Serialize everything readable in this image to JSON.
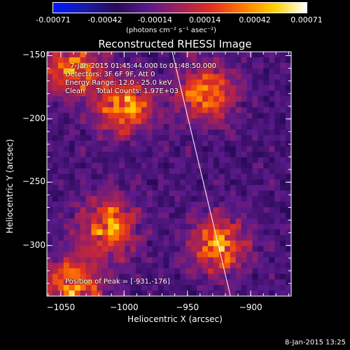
{
  "colorbar": {
    "ticks": [
      "-0.00071",
      "-0.00042",
      "-0.00014",
      "0.00014",
      "0.00042",
      "0.00071"
    ],
    "tick_values": [
      -0.00071,
      -0.00042,
      -0.00014,
      0.00014,
      0.00042,
      0.00071
    ],
    "units": "(photons cm⁻² s⁻¹ asec⁻²)",
    "colors": [
      "#0018ff",
      "#1a1aa8",
      "#2a0a58",
      "#5a1a8a",
      "#a0205a",
      "#e03020",
      "#ff7a00",
      "#ffd000",
      "#ffffff"
    ]
  },
  "chart_data": {
    "type": "heatmap",
    "title": "Reconstructed RHESSI Image",
    "xlabel": "Heliocentric X (arcsec)",
    "ylabel": "Heliocentric Y (arcsec)",
    "x_ticks": [
      "−1050",
      "−1000",
      "−950",
      "−900"
    ],
    "x_tick_values": [
      -1050,
      -1000,
      -950,
      -900
    ],
    "y_ticks": [
      "−150",
      "−200",
      "−250",
      "−300"
    ],
    "y_tick_values": [
      -150,
      -200,
      -250,
      -300
    ],
    "xlim": [
      -1061,
      -868
    ],
    "ylim": [
      -340,
      -147
    ],
    "limb_line": {
      "x": [
        -962,
        -916
      ],
      "y": [
        -147,
        -340
      ]
    },
    "peak": {
      "x": -931,
      "y": -176
    },
    "bright_regions": [
      {
        "x": -1000,
        "y": -190
      },
      {
        "x": -935,
        "y": -180
      },
      {
        "x": -1040,
        "y": -160
      },
      {
        "x": -1012,
        "y": -285
      },
      {
        "x": -925,
        "y": -300
      },
      {
        "x": -1040,
        "y": -330
      }
    ],
    "annotations": {
      "time_range": "7-Jan-2015 01:45:44.000 to 01:48:50.000",
      "detectors": "Detectors: 3F 6F 9F, Att 0",
      "energy": "Energy Range: 12.0 - 25.0 keV",
      "clean": "Clean     Total Counts: 1.97E+03",
      "peak_text": "Position of Peak = [-931,-176]"
    }
  },
  "footer_date": "8-Jan-2015 13:25"
}
